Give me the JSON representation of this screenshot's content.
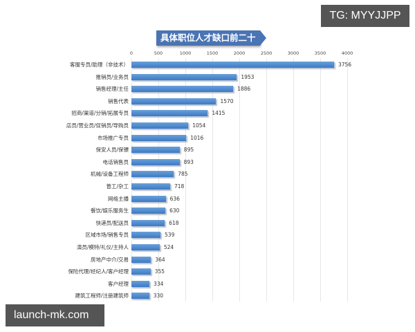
{
  "chart_data": {
    "type": "bar",
    "orientation": "horizontal",
    "title": "具体职位人才缺口前二十名",
    "xlabel": "",
    "ylabel": "",
    "xlim": [
      0,
      4000
    ],
    "x_ticks": [
      0,
      500,
      1000,
      1500,
      2000,
      2500,
      3000,
      3500,
      4000
    ],
    "grid": true,
    "legend": null,
    "bar_color": "#4a86cf",
    "categories": [
      "客服专员/助理（非技术）",
      "推销员/业务员",
      "销售经理/主任",
      "销售代表",
      "招商/渠道/分销/拓展专员",
      "店员/营业员/促销员/导购员",
      "市场推广专员",
      "保安人员/保镖",
      "电话销售员",
      "机械/设备工程师",
      "普工/杂工",
      "网络主播",
      "餐饮/娱乐服务生",
      "快递员/配送员",
      "区域市场/销售专员",
      "演员/模特/礼仪/主持人",
      "房地产中介/交易",
      "保险代理/经纪人/客户经理",
      "客户经理",
      "建筑工程师/注册建筑师"
    ],
    "values": [
      3756,
      1953,
      1886,
      1570,
      1415,
      1054,
      1016,
      895,
      893,
      785,
      718,
      636,
      630,
      618,
      539,
      524,
      364,
      355,
      334,
      330
    ]
  },
  "watermarks": {
    "top_right": "TG: MYYJJPP",
    "bottom_left": "launch-mk.com"
  }
}
